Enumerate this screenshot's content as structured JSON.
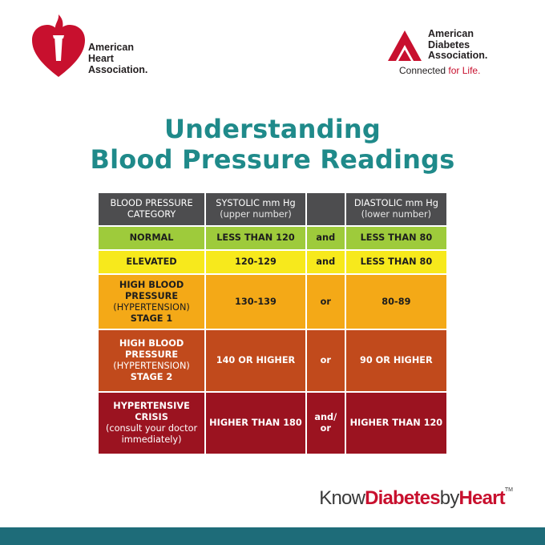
{
  "aha": {
    "line1": "American",
    "line2": "Heart",
    "line3": "Association."
  },
  "ada": {
    "line1": "American",
    "line2": "Diabetes",
    "line3": "Association.",
    "tag_plain": "Connected ",
    "tag_red": "for Life."
  },
  "title": {
    "line1": "Understanding",
    "line2": "Blood Pressure Readings"
  },
  "table": {
    "headers": {
      "category_line1": "BLOOD PRESSURE",
      "category_line2": "CATEGORY",
      "systolic_line1": "SYSTOLIC mm Hg",
      "systolic_line2": "(upper number)",
      "diastolic_line1": "DIASTOLIC mm Hg",
      "diastolic_line2": "(lower number)"
    },
    "rows": [
      {
        "category": "NORMAL",
        "systolic": "LESS THAN 120",
        "join": "and",
        "diastolic": "LESS THAN 80"
      },
      {
        "category": "ELEVATED",
        "systolic": "120-129",
        "join": "and",
        "diastolic": "LESS THAN 80"
      },
      {
        "category_a": "HIGH BLOOD",
        "category_b": "PRESSURE",
        "category_c": "(HYPERTENSION)",
        "category_d": "STAGE 1",
        "systolic": "130-139",
        "join": "or",
        "diastolic": "80-89"
      },
      {
        "category_a": "HIGH BLOOD",
        "category_b": "PRESSURE",
        "category_c": "(HYPERTENSION)",
        "category_d": "STAGE 2",
        "systolic": "140 OR HIGHER",
        "join": "or",
        "diastolic": "90 OR HIGHER"
      },
      {
        "category_a": "HYPERTENSIVE",
        "category_b": "CRISIS",
        "category_c": "(consult your doctor",
        "category_d": "immediately)",
        "systolic": "HIGHER THAN 180",
        "join_a": "and/",
        "join_b": "or",
        "diastolic": "HIGHER THAN 120"
      }
    ]
  },
  "footer": {
    "know": "Know",
    "diabetes": "Diabetes",
    "by": "by",
    "heart": "Heart",
    "tm": "TM"
  },
  "colors": {
    "title": "#1f8a8a",
    "header": "#4d4d4f",
    "normal": "#9ecb3b",
    "elevated": "#f7e91c",
    "stage1": "#f4a917",
    "stage2": "#c14a1c",
    "crisis": "#9b1320",
    "bottom_bar": "#1e6c79"
  }
}
